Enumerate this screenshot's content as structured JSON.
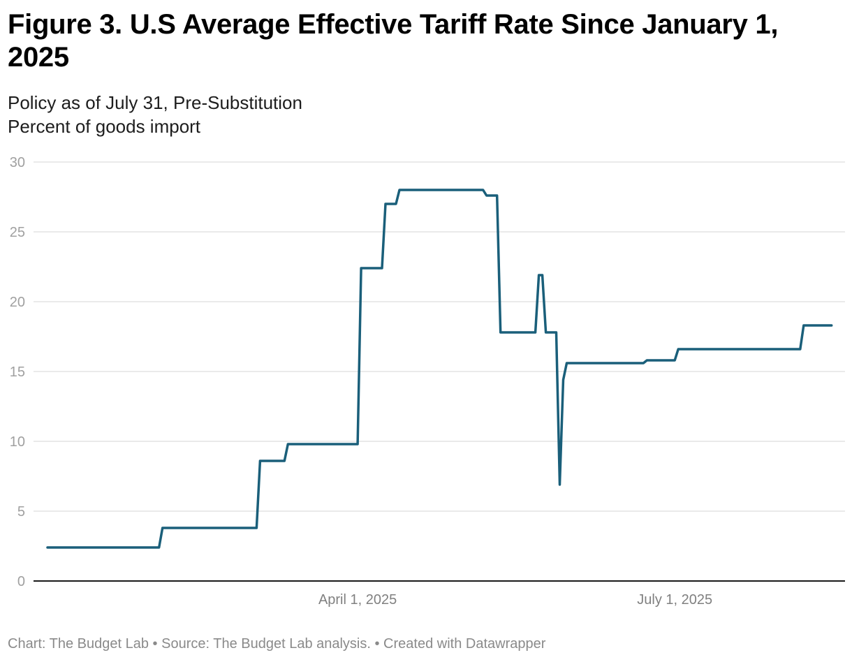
{
  "header": {
    "title": "Figure 3. U.S Average Effective Tariff Rate Since January 1, 2025",
    "subtitle_lines": [
      "Policy as of July 31, Pre-Substitution",
      "Percent of goods import"
    ]
  },
  "footer": {
    "text": "Chart: The Budget Lab • Source: The Budget Lab analysis. • Created with Datawrapper"
  },
  "colors": {
    "line": "#1a5f7a",
    "grid": "#e3e3e3",
    "baseline": "#1a1a1a"
  },
  "chart_data": {
    "type": "line",
    "title": "Figure 3. U.S Average Effective Tariff Rate Since January 1, 2025",
    "subtitle": "Policy as of July 31, Pre-Substitution",
    "xlabel": "",
    "ylabel": "Percent of goods import",
    "ylim": [
      0,
      30
    ],
    "xlim": [
      "2025-01-01",
      "2025-08-14"
    ],
    "y_ticks": [
      0,
      5,
      10,
      15,
      20,
      25,
      30
    ],
    "x_ticks": [
      {
        "date": "2025-04-01",
        "label": "April 1, 2025"
      },
      {
        "date": "2025-07-01",
        "label": "July 1, 2025"
      }
    ],
    "grid": true,
    "legend": "none",
    "series": [
      {
        "name": "Average effective tariff rate",
        "points": [
          [
            "2025-01-02",
            2.4
          ],
          [
            "2025-02-03",
            2.4
          ],
          [
            "2025-02-04",
            3.8
          ],
          [
            "2025-03-03",
            3.8
          ],
          [
            "2025-03-04",
            8.6
          ],
          [
            "2025-03-11",
            8.6
          ],
          [
            "2025-03-12",
            9.8
          ],
          [
            "2025-04-01",
            9.8
          ],
          [
            "2025-04-02",
            22.4
          ],
          [
            "2025-04-08",
            22.4
          ],
          [
            "2025-04-09",
            27.0
          ],
          [
            "2025-04-12",
            27.0
          ],
          [
            "2025-04-13",
            28.0
          ],
          [
            "2025-05-07",
            28.0
          ],
          [
            "2025-05-08",
            27.6
          ],
          [
            "2025-05-11",
            27.6
          ],
          [
            "2025-05-12",
            17.8
          ],
          [
            "2025-05-22",
            17.8
          ],
          [
            "2025-05-23",
            21.9
          ],
          [
            "2025-05-24",
            21.9
          ],
          [
            "2025-05-25",
            17.8
          ],
          [
            "2025-05-28",
            17.8
          ],
          [
            "2025-05-29",
            6.9
          ],
          [
            "2025-05-30",
            14.4
          ],
          [
            "2025-05-31",
            15.6
          ],
          [
            "2025-06-22",
            15.6
          ],
          [
            "2025-06-23",
            15.8
          ],
          [
            "2025-07-01",
            15.8
          ],
          [
            "2025-07-02",
            16.6
          ],
          [
            "2025-08-06",
            16.6
          ],
          [
            "2025-08-07",
            18.3
          ],
          [
            "2025-08-15",
            18.3
          ]
        ]
      }
    ]
  }
}
